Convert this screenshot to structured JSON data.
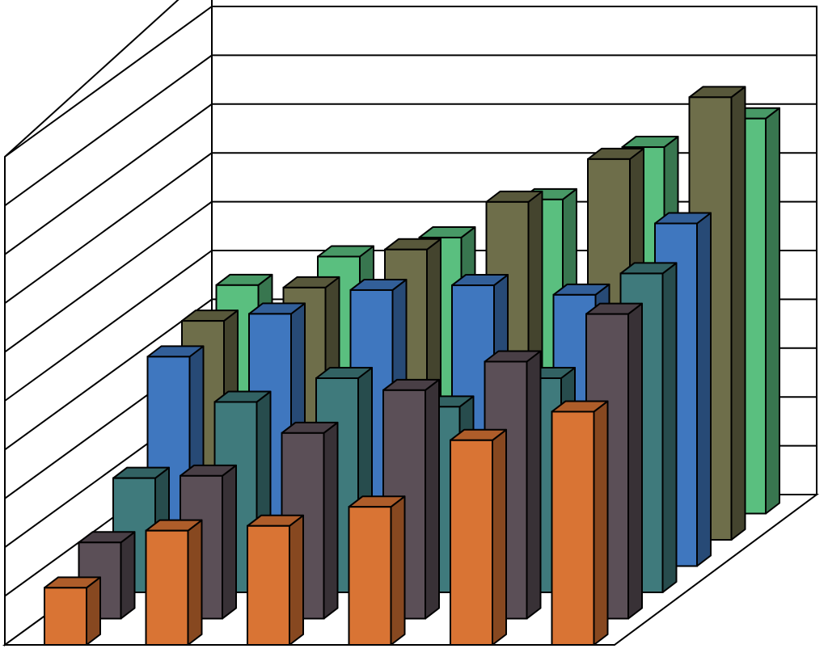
{
  "chart_data": {
    "type": "bar",
    "title": "",
    "xlabel": "",
    "ylabel": "",
    "ylim": [
      0,
      10
    ],
    "grid": true,
    "legend": "none",
    "categories": [
      "",
      "",
      "",
      "",
      "",
      ""
    ],
    "series": [
      {
        "color": "#5abf7f",
        "values": [
          4.8,
          5.4,
          5.8,
          6.6,
          7.7,
          8.3
        ]
      },
      {
        "color": "#6e6e4a",
        "values": [
          4.6,
          5.3,
          6.1,
          7.1,
          8.0,
          9.3
        ]
      },
      {
        "color": "#3f77bf",
        "values": [
          4.4,
          5.3,
          5.8,
          5.9,
          5.7,
          7.2
        ]
      },
      {
        "color": "#3f7a7c",
        "values": [
          2.4,
          4.0,
          4.5,
          3.9,
          4.5,
          6.7
        ]
      },
      {
        "color": "#5b4f57",
        "values": [
          1.6,
          3.0,
          3.9,
          4.8,
          5.4,
          6.4
        ]
      },
      {
        "color": "#d97434",
        "values": [
          1.2,
          2.4,
          2.5,
          2.9,
          4.3,
          4.9
        ]
      }
    ]
  }
}
